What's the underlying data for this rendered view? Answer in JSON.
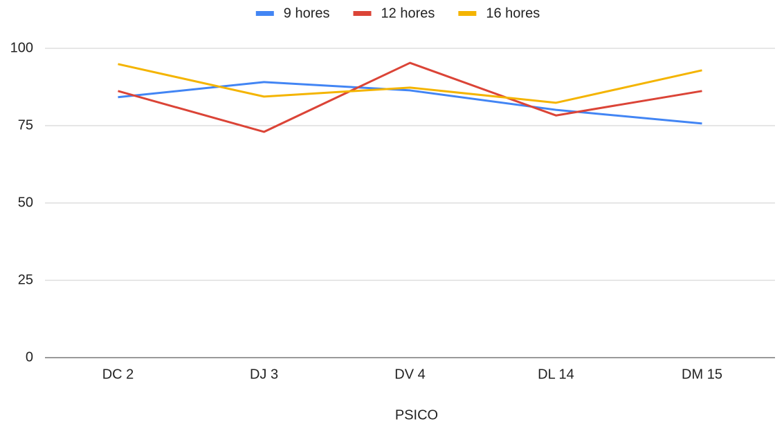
{
  "chart_data": {
    "type": "line",
    "x_label": "PSICO",
    "categories": [
      "DC 2",
      "DJ 3",
      "DV 4",
      "DL 14",
      "DM 15"
    ],
    "series": [
      {
        "name": "9 hores",
        "color": "#4285f4",
        "values": [
          84.2,
          89.1,
          86.4,
          80.1,
          75.7
        ]
      },
      {
        "name": "12 hores",
        "color": "#db4437",
        "values": [
          86.2,
          73,
          95.3,
          78.3,
          86.2
        ]
      },
      {
        "name": "16 hores",
        "color": "#f4b400",
        "values": [
          94.9,
          84.4,
          87.3,
          82.4,
          92.9
        ]
      }
    ],
    "ylim": [
      0,
      100
    ],
    "yticks": [
      0,
      25,
      50,
      75,
      100
    ],
    "grid": true,
    "legend": "top"
  }
}
